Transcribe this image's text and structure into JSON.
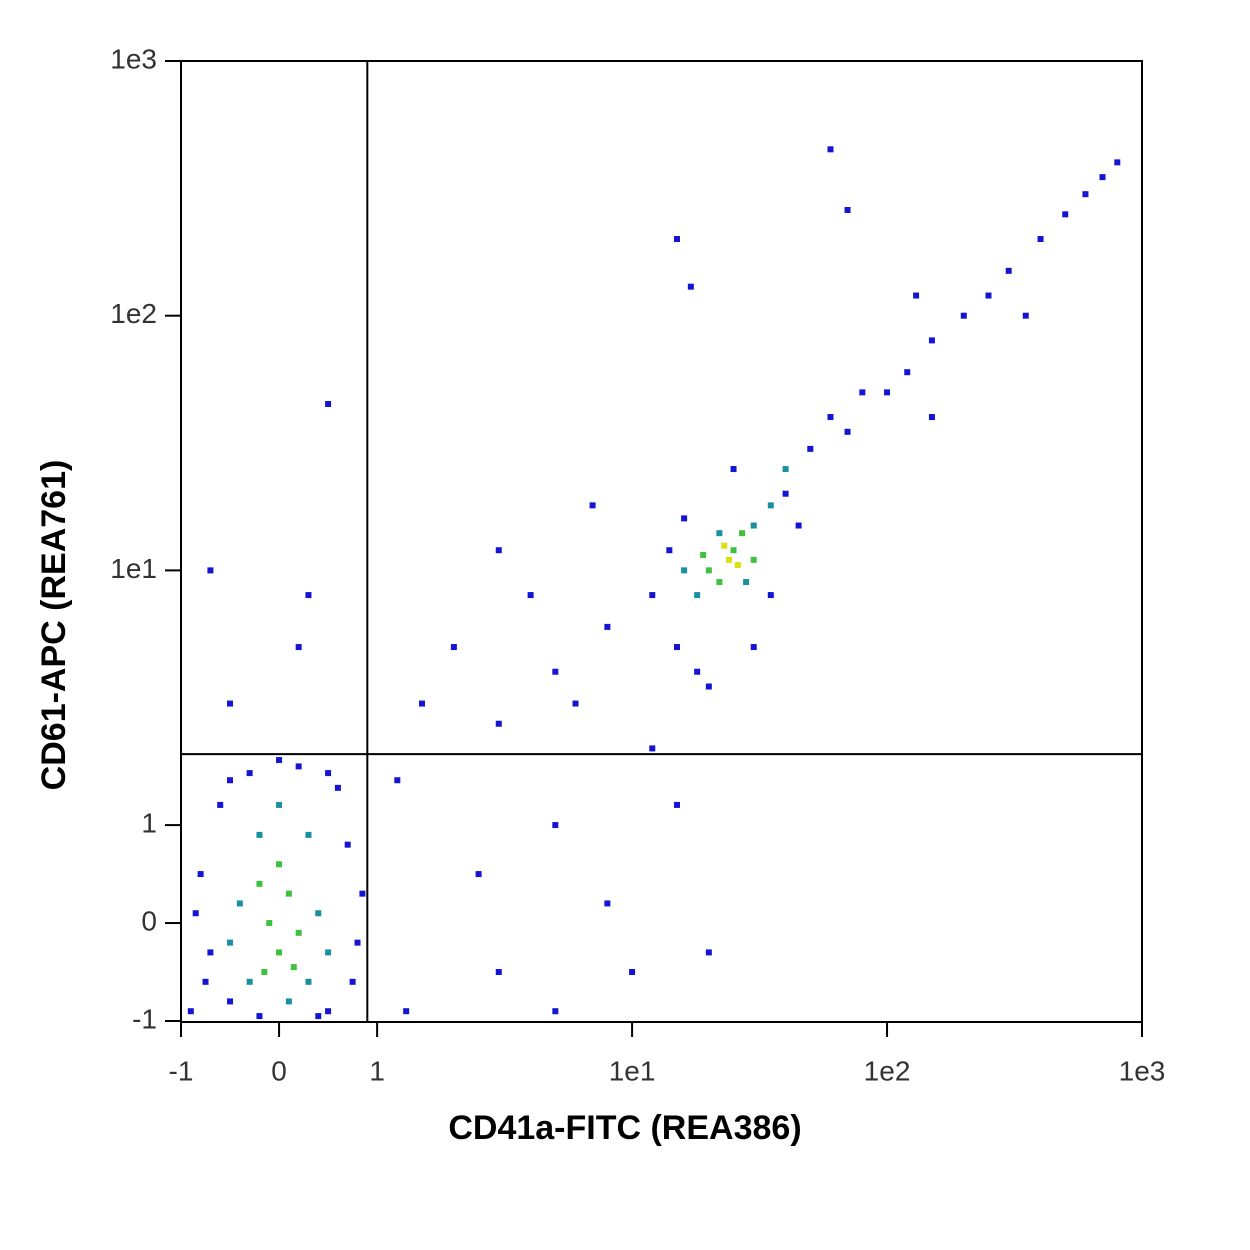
{
  "chart_data": {
    "type": "scatter",
    "xscale": "biexponential",
    "yscale": "biexponential",
    "x_label": "CD41a-FITC (REA386)",
    "y_label": "CD61-APC (REA761)",
    "xlim": [
      -1,
      1000
    ],
    "ylim": [
      -1,
      1000
    ],
    "xticks": [
      -1,
      0,
      1,
      {
        "value": 10,
        "label": "1e1"
      },
      {
        "value": 100,
        "label": "1e2"
      },
      {
        "value": 1000,
        "label": "1e3"
      }
    ],
    "yticks": [
      -1,
      0,
      1,
      {
        "value": 10,
        "label": "1e1"
      },
      {
        "value": 100,
        "label": "1e2"
      },
      {
        "value": 1000,
        "label": "1e3"
      }
    ],
    "quadrant_gate": {
      "x": 0.9,
      "y": 1.9
    },
    "series": [
      {
        "color": "#1414d2",
        "x": [
          -0.9,
          -0.8,
          -0.7,
          -0.6,
          -0.5,
          0.5,
          0.7,
          0.8,
          0.6,
          -0.3,
          0.2,
          -0.85,
          0.85,
          0.4,
          -0.2,
          0.75,
          -0.75,
          0.0,
          -0.5,
          0.5,
          15,
          18,
          30,
          12,
          40,
          50,
          60,
          14,
          25,
          35,
          20,
          45,
          70,
          80,
          16,
          100,
          120,
          150,
          200,
          250,
          300,
          400,
          500,
          700,
          800,
          600,
          350,
          150,
          130,
          1.5,
          2,
          3,
          5,
          8,
          4,
          6,
          1.2,
          2.5,
          3,
          5,
          8,
          10,
          15,
          20,
          12,
          -0.5,
          0.2,
          -0.7,
          0.3,
          0.5,
          15,
          17,
          60,
          70,
          7,
          3,
          5,
          1.3
        ],
        "values": [
          -0.9,
          0.5,
          -0.3,
          1.2,
          -0.8,
          -0.9,
          0.8,
          -0.2,
          1.4,
          1.6,
          1.7,
          0.1,
          0.3,
          -0.95,
          -0.95,
          -0.6,
          -0.6,
          1.8,
          1.5,
          1.6,
          5,
          4,
          5,
          8,
          20,
          30,
          40,
          12,
          25,
          8,
          3.5,
          15,
          35,
          50,
          16,
          50,
          60,
          80,
          100,
          120,
          150,
          200,
          250,
          350,
          400,
          300,
          100,
          40,
          120,
          3,
          5,
          2.5,
          4,
          6,
          8,
          3,
          1.5,
          0.5,
          -0.5,
          1,
          0.2,
          -0.5,
          1.2,
          -0.3,
          2,
          3,
          5,
          10,
          8,
          45,
          200,
          130,
          450,
          260,
          18,
          12,
          -0.9,
          -0.9
        ]
      },
      {
        "color": "#1a8fa0",
        "x": [
          -0.4,
          0.4,
          -0.3,
          0.3,
          0,
          -0.2,
          0.3,
          0.5,
          -0.5,
          0.1,
          18,
          30,
          22,
          28,
          35,
          16,
          40
        ],
        "values": [
          0.2,
          0.1,
          -0.6,
          -0.6,
          1.2,
          0.9,
          0.9,
          -0.3,
          -0.2,
          -0.8,
          8,
          15,
          14,
          9,
          18,
          10,
          25
        ]
      },
      {
        "color": "#40c040",
        "x": [
          -0.1,
          0.1,
          0,
          -0.2,
          0.2,
          0,
          -0.15,
          0.15,
          20,
          25,
          22,
          27,
          19,
          30
        ],
        "values": [
          0,
          0.3,
          -0.3,
          0.4,
          -0.1,
          0.6,
          -0.5,
          -0.45,
          10,
          12,
          9,
          14,
          11.5,
          11
        ]
      },
      {
        "color": "#d8e010",
        "x": [
          24,
          23,
          26
        ],
        "values": [
          11,
          12.5,
          10.5
        ]
      }
    ]
  }
}
